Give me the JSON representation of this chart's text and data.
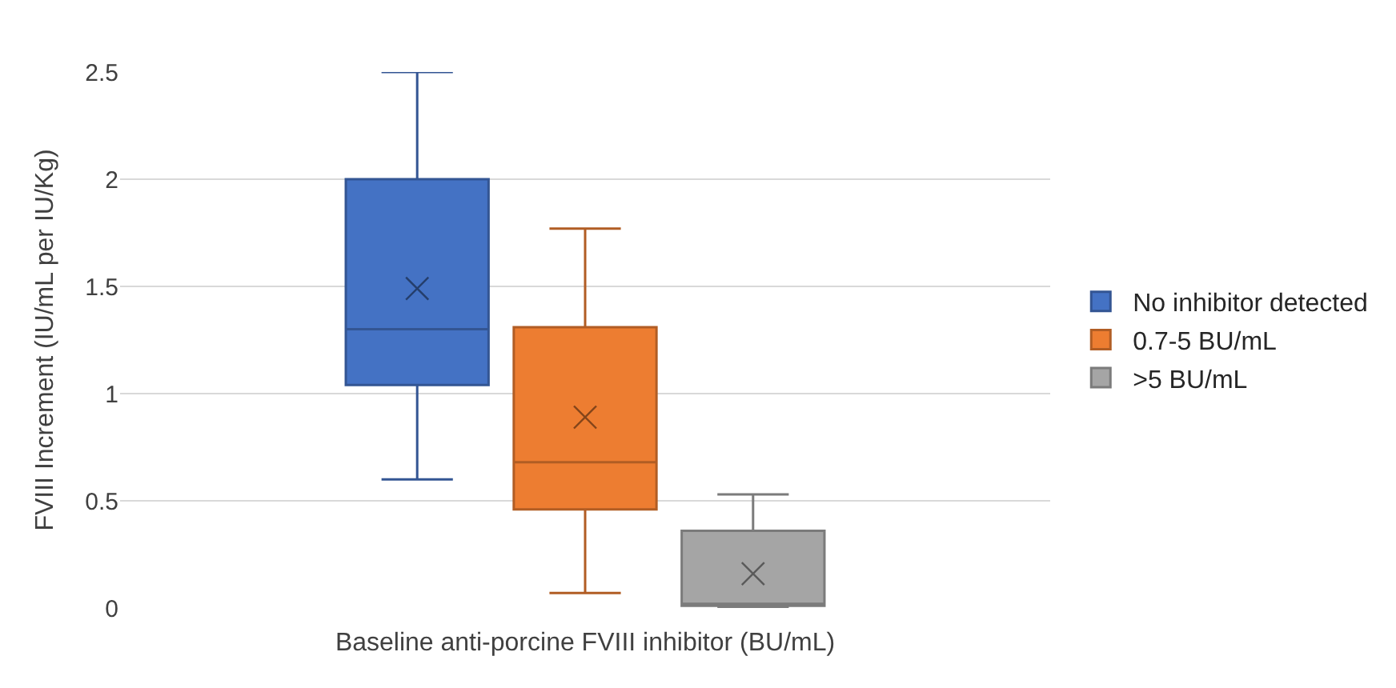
{
  "chart_data": {
    "type": "box",
    "xlabel": "Baseline anti-porcine FVIII inhibitor (BU/mL)",
    "ylabel": "FVIII Increment (IU/mL per IU/Kg)",
    "categories": [
      null
    ],
    "ylim": [
      0,
      2.5
    ],
    "yticks": [
      0,
      0.5,
      1,
      1.5,
      2,
      2.5
    ],
    "grid": "y",
    "legend": "right",
    "marker": "cross",
    "series": [
      {
        "name": "No inhibitor detected",
        "color": "#4472c4",
        "boxes": [
          {
            "low": 0.6,
            "q1": 1.04,
            "median": 1.3,
            "q3": 2.0,
            "high": 2.5,
            "mean": 1.49
          }
        ]
      },
      {
        "name": "0.7-5 BU/mL",
        "color": "#ed7d31",
        "boxes": [
          {
            "low": 0.07,
            "q1": 0.46,
            "median": 0.68,
            "q3": 1.31,
            "high": 1.77,
            "mean": 0.89
          }
        ]
      },
      {
        "name": ">5 BU/mL",
        "color": "#a5a5a5",
        "boxes": [
          {
            "low": 0.0,
            "q1": 0.01,
            "median": 0.02,
            "q3": 0.36,
            "high": 0.53,
            "mean": 0.16
          }
        ]
      }
    ]
  }
}
